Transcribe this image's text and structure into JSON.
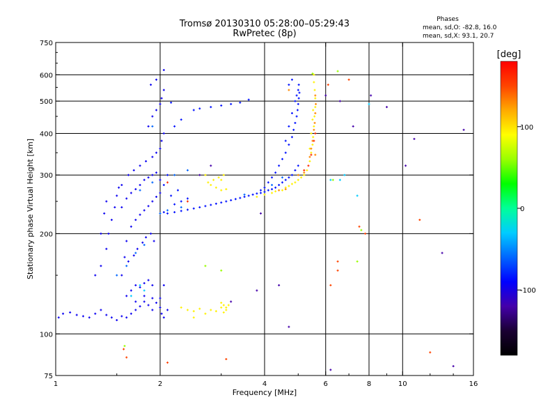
{
  "header": {
    "title_line1": "Tromsø 20130310 05:28:00–05:29:43",
    "title_line2": "RwPretec (8p)",
    "phase_title": "Phases",
    "phase_o": "mean, sd,O: -82.8, 16.0",
    "phase_x": "mean, sd,X:  93.1, 20.7"
  },
  "chart_data": {
    "type": "scatter",
    "xlabel": "Frequency [MHz]",
    "ylabel": "Stationary phase Virtual Height [km]",
    "x_scale": "log",
    "y_scale": "log",
    "xlim": [
      1,
      16
    ],
    "ylim": [
      75,
      750
    ],
    "x_ticks": [
      1,
      2,
      4,
      6,
      8,
      10,
      16
    ],
    "y_ticks": [
      75,
      100,
      200,
      300,
      400,
      500,
      600,
      750
    ],
    "grid": true,
    "colorbar": {
      "label": "[deg]",
      "range": [
        -180,
        180
      ],
      "ticks": [
        -100,
        0,
        100
      ],
      "colors": [
        "#000000",
        "#1a0033",
        "#4400aa",
        "#0000ff",
        "#0066ff",
        "#00ccff",
        "#00ff99",
        "#00ff00",
        "#99ff00",
        "#ffff00",
        "#ffaa00",
        "#ff4400",
        "#ff0000"
      ]
    },
    "series": [
      {
        "phase_deg": -95,
        "points": [
          [
            1.02,
            112
          ],
          [
            1.05,
            115
          ],
          [
            1.1,
            116
          ],
          [
            1.15,
            114
          ],
          [
            1.2,
            113
          ],
          [
            1.25,
            112
          ],
          [
            1.3,
            115
          ],
          [
            1.35,
            118
          ],
          [
            1.4,
            114
          ],
          [
            1.45,
            112
          ],
          [
            1.5,
            110
          ],
          [
            1.55,
            113
          ],
          [
            1.6,
            112
          ],
          [
            1.65,
            115
          ],
          [
            1.7,
            118
          ],
          [
            1.75,
            121
          ],
          [
            1.8,
            125
          ],
          [
            1.85,
            122
          ],
          [
            1.9,
            128
          ],
          [
            1.95,
            124
          ],
          [
            2.0,
            120
          ],
          [
            2.02,
            115
          ],
          [
            2.05,
            112
          ],
          [
            1.6,
            130
          ],
          [
            1.65,
            135
          ],
          [
            1.7,
            140
          ],
          [
            1.75,
            138
          ],
          [
            1.8,
            142
          ],
          [
            1.85,
            145
          ],
          [
            1.9,
            140
          ],
          [
            1.62,
            165
          ],
          [
            1.68,
            172
          ],
          [
            1.72,
            180
          ],
          [
            1.78,
            188
          ],
          [
            1.82,
            195
          ],
          [
            1.88,
            200
          ],
          [
            1.92,
            190
          ],
          [
            1.65,
            210
          ],
          [
            1.7,
            220
          ],
          [
            1.75,
            228
          ],
          [
            1.8,
            235
          ],
          [
            1.85,
            242
          ],
          [
            1.9,
            250
          ],
          [
            1.95,
            258
          ],
          [
            2.0,
            265
          ],
          [
            1.55,
            240
          ],
          [
            1.6,
            255
          ],
          [
            1.65,
            265
          ],
          [
            1.7,
            272
          ],
          [
            1.75,
            280
          ],
          [
            1.8,
            290
          ],
          [
            1.85,
            295
          ],
          [
            1.9,
            300
          ],
          [
            1.95,
            305
          ],
          [
            2.0,
            290
          ],
          [
            1.55,
            280
          ],
          [
            1.62,
            300
          ],
          [
            1.68,
            310
          ],
          [
            1.75,
            320
          ],
          [
            1.82,
            330
          ],
          [
            1.9,
            340
          ],
          [
            1.95,
            350
          ],
          [
            2.0,
            360
          ],
          [
            2.02,
            380
          ],
          [
            2.05,
            400
          ],
          [
            1.85,
            420
          ],
          [
            1.9,
            450
          ],
          [
            1.95,
            470
          ],
          [
            2.0,
            490
          ],
          [
            2.02,
            510
          ],
          [
            2.05,
            540
          ],
          [
            1.88,
            560
          ],
          [
            1.95,
            580
          ],
          [
            2.05,
            620
          ],
          [
            1.3,
            150
          ],
          [
            1.35,
            160
          ],
          [
            1.4,
            180
          ],
          [
            1.42,
            200
          ],
          [
            1.45,
            220
          ],
          [
            1.48,
            240
          ],
          [
            1.5,
            260
          ],
          [
            1.52,
            275
          ],
          [
            1.35,
            200
          ],
          [
            1.38,
            230
          ],
          [
            1.4,
            250
          ],
          [
            1.55,
            150
          ],
          [
            1.58,
            170
          ],
          [
            1.6,
            190
          ],
          [
            1.7,
            125
          ],
          [
            1.8,
            130
          ],
          [
            1.9,
            118
          ],
          [
            2.0,
            128
          ],
          [
            2.05,
            140
          ],
          [
            2.1,
            118
          ]
        ]
      },
      {
        "phase_deg": -85,
        "points": [
          [
            2.05,
            232
          ],
          [
            2.1,
            230
          ],
          [
            2.2,
            232
          ],
          [
            2.3,
            234
          ],
          [
            2.4,
            236
          ],
          [
            2.5,
            238
          ],
          [
            2.6,
            240
          ],
          [
            2.7,
            242
          ],
          [
            2.8,
            244
          ],
          [
            2.9,
            246
          ],
          [
            3.0,
            248
          ],
          [
            3.1,
            250
          ],
          [
            3.2,
            252
          ],
          [
            3.3,
            254
          ],
          [
            3.4,
            256
          ],
          [
            3.5,
            258
          ],
          [
            3.6,
            260
          ],
          [
            3.7,
            262
          ],
          [
            3.8,
            264
          ],
          [
            2.2,
            245
          ],
          [
            2.3,
            250
          ],
          [
            2.4,
            255
          ],
          [
            2.15,
            260
          ],
          [
            2.25,
            270
          ],
          [
            2.05,
            280
          ],
          [
            2.1,
            300
          ],
          [
            2.2,
            420
          ],
          [
            2.3,
            440
          ],
          [
            2.5,
            470
          ],
          [
            2.8,
            480
          ],
          [
            3.0,
            485
          ],
          [
            3.2,
            490
          ],
          [
            3.4,
            495
          ],
          [
            3.6,
            505
          ],
          [
            2.15,
            495
          ],
          [
            2.6,
            475
          ],
          [
            3.9,
            265
          ],
          [
            4.0,
            267
          ],
          [
            4.1,
            270
          ],
          [
            4.2,
            272
          ],
          [
            4.3,
            275
          ],
          [
            4.4,
            280
          ],
          [
            4.5,
            285
          ],
          [
            4.6,
            290
          ],
          [
            4.7,
            295
          ],
          [
            4.8,
            300
          ],
          [
            4.9,
            310
          ],
          [
            5.0,
            320
          ],
          [
            3.9,
            270
          ],
          [
            4.0,
            275
          ],
          [
            4.1,
            285
          ],
          [
            4.2,
            295
          ],
          [
            4.3,
            305
          ],
          [
            4.4,
            320
          ],
          [
            4.5,
            335
          ],
          [
            4.6,
            350
          ],
          [
            4.7,
            370
          ],
          [
            4.8,
            390
          ],
          [
            4.85,
            410
          ],
          [
            4.9,
            430
          ],
          [
            4.95,
            450
          ],
          [
            4.98,
            470
          ],
          [
            5.0,
            490
          ],
          [
            5.02,
            510
          ],
          [
            5.04,
            530
          ],
          [
            4.6,
            380
          ],
          [
            4.7,
            420
          ],
          [
            4.8,
            460
          ],
          [
            4.9,
            500
          ],
          [
            4.95,
            520
          ],
          [
            5.0,
            540
          ],
          [
            5.02,
            560
          ],
          [
            4.7,
            560
          ],
          [
            4.8,
            580
          ]
        ]
      },
      {
        "phase_deg": -60,
        "points": [
          [
            1.5,
            150
          ],
          [
            1.6,
            160
          ],
          [
            1.7,
            175
          ],
          [
            1.8,
            185
          ],
          [
            2.0,
            230
          ],
          [
            2.1,
            235
          ],
          [
            2.3,
            240
          ],
          [
            1.75,
            270
          ],
          [
            1.9,
            285
          ],
          [
            3.5,
            262
          ],
          [
            4.2,
            280
          ],
          [
            4.5,
            295
          ],
          [
            2.2,
            300
          ],
          [
            1.9,
            420
          ],
          [
            2.4,
            310
          ]
        ]
      },
      {
        "phase_deg": 95,
        "points": [
          [
            2.8,
            280
          ],
          [
            2.9,
            275
          ],
          [
            3.0,
            270
          ],
          [
            3.1,
            272
          ],
          [
            2.85,
            290
          ],
          [
            2.95,
            295
          ],
          [
            3.05,
            300
          ],
          [
            2.7,
            300
          ],
          [
            2.75,
            285
          ],
          [
            3.0,
            290
          ],
          [
            4.5,
            270
          ],
          [
            4.6,
            275
          ],
          [
            4.7,
            278
          ],
          [
            4.8,
            282
          ],
          [
            4.9,
            285
          ],
          [
            5.0,
            290
          ],
          [
            5.1,
            295
          ],
          [
            5.2,
            300
          ],
          [
            5.3,
            310
          ],
          [
            5.4,
            330
          ],
          [
            5.45,
            350
          ],
          [
            5.5,
            370
          ],
          [
            5.52,
            390
          ],
          [
            5.55,
            420
          ],
          [
            5.57,
            450
          ],
          [
            5.6,
            480
          ],
          [
            5.6,
            510
          ],
          [
            5.58,
            540
          ],
          [
            5.55,
            570
          ],
          [
            5.55,
            600
          ],
          [
            5.4,
            360
          ],
          [
            5.45,
            400
          ],
          [
            5.5,
            440
          ],
          [
            5.52,
            470
          ],
          [
            4.2,
            265
          ],
          [
            4.3,
            268
          ],
          [
            4.0,
            262
          ],
          [
            3.8,
            258
          ],
          [
            2.3,
            120
          ],
          [
            2.4,
            118
          ],
          [
            2.5,
            117
          ],
          [
            2.6,
            119
          ],
          [
            2.8,
            118
          ],
          [
            2.9,
            117
          ],
          [
            3.0,
            120
          ],
          [
            3.05,
            122
          ],
          [
            3.1,
            118
          ],
          [
            2.5,
            112
          ],
          [
            2.7,
            115
          ],
          [
            3.0,
            124
          ],
          [
            3.05,
            116
          ],
          [
            3.1,
            120
          ],
          [
            3.15,
            122
          ]
        ]
      },
      {
        "phase_deg": 130,
        "points": [
          [
            5.4,
            340
          ],
          [
            5.5,
            380
          ],
          [
            5.55,
            410
          ],
          [
            5.58,
            430
          ],
          [
            5.6,
            460
          ],
          [
            5.62,
            490
          ],
          [
            5.0,
            300
          ],
          [
            5.2,
            305
          ],
          [
            4.4,
            270
          ],
          [
            4.6,
            272
          ],
          [
            5.6,
            520
          ],
          [
            5.45,
            360
          ],
          [
            4.7,
            540
          ],
          [
            5.6,
            345
          ]
        ]
      },
      {
        "phase_deg": 160,
        "points": [
          [
            5.2,
            310
          ],
          [
            5.35,
            320
          ],
          [
            5.45,
            345
          ],
          [
            5.55,
            380
          ],
          [
            5.6,
            400
          ],
          [
            2.4,
            250
          ],
          [
            2.1,
            285
          ]
        ]
      },
      {
        "phase_deg": -30,
        "points": [
          [
            6.6,
            290
          ],
          [
            6.8,
            300
          ],
          [
            6.2,
            290
          ],
          [
            7.4,
            260
          ],
          [
            8.0,
            490
          ],
          [
            1.65,
            130
          ],
          [
            1.75,
            140
          ],
          [
            1.8,
            135
          ]
        ]
      },
      {
        "phase_deg": -120,
        "points": [
          [
            6.0,
            520
          ],
          [
            7.2,
            420
          ],
          [
            9.0,
            480
          ],
          [
            10.2,
            320
          ],
          [
            13.0,
            175
          ],
          [
            15.0,
            410
          ],
          [
            14.0,
            80
          ],
          [
            8.1,
            520
          ],
          [
            6.6,
            500
          ],
          [
            10.8,
            385
          ],
          [
            6.2,
            78
          ],
          [
            4.7,
            105
          ],
          [
            3.8,
            135
          ],
          [
            3.2,
            125
          ],
          [
            4.4,
            140
          ],
          [
            3.9,
            230
          ],
          [
            2.6,
            300
          ],
          [
            2.8,
            320
          ]
        ]
      },
      {
        "phase_deg": 150,
        "points": [
          [
            6.2,
            140
          ],
          [
            6.5,
            155
          ],
          [
            7.5,
            210
          ],
          [
            7.8,
            200
          ],
          [
            1.57,
            90
          ],
          [
            1.6,
            85
          ],
          [
            2.1,
            82
          ],
          [
            3.1,
            84
          ],
          [
            6.1,
            560
          ],
          [
            7.0,
            580
          ],
          [
            11.2,
            220
          ],
          [
            12.0,
            88
          ],
          [
            6.5,
            165
          ]
        ]
      },
      {
        "phase_deg": 60,
        "points": [
          [
            7.4,
            165
          ],
          [
            7.6,
            205
          ],
          [
            5.5,
            605
          ],
          [
            6.5,
            615
          ],
          [
            2.7,
            160
          ],
          [
            3.0,
            155
          ],
          [
            1.58,
            92
          ],
          [
            6.3,
            290
          ]
        ]
      }
    ]
  }
}
